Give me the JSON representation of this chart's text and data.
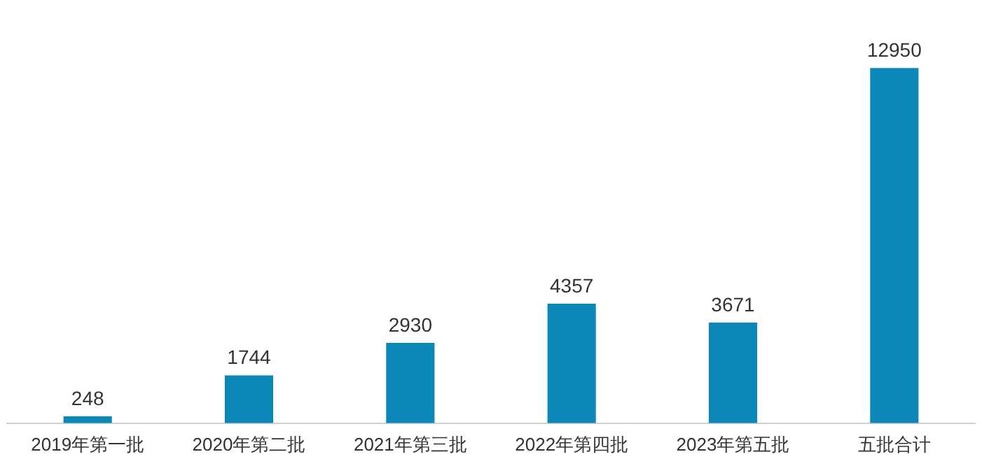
{
  "chart_data": {
    "type": "bar",
    "categories": [
      "2019年第一批",
      "2020年第二批",
      "2021年第三批",
      "2022年第四批",
      "2023年第五批",
      "五批合计"
    ],
    "values": [
      248,
      1744,
      2930,
      4357,
      3671,
      12950
    ],
    "color": "#0b87b8",
    "data_labels": true,
    "grid": false,
    "legend": false
  }
}
